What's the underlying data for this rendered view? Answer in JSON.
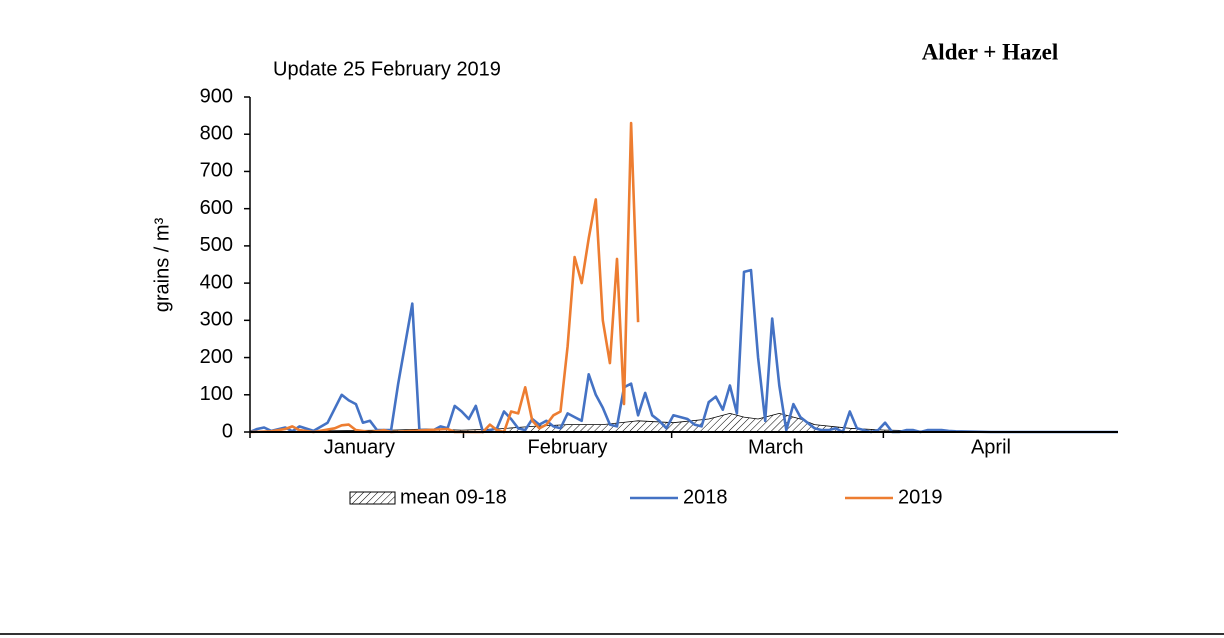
{
  "chart_data": {
    "type": "line",
    "title": "Alder + Hazel",
    "subtitle": "Update 25 February 2019",
    "y_label": "grains / m³",
    "xlim": [
      0,
      123
    ],
    "xticks": [
      {
        "value": 15.5,
        "label": "January"
      },
      {
        "value": 45,
        "label": "February"
      },
      {
        "value": 74.5,
        "label": "March"
      },
      {
        "value": 105,
        "label": "April"
      }
    ],
    "ylim": [
      0,
      900
    ],
    "yticks": [
      0,
      100,
      200,
      300,
      400,
      500,
      600,
      700,
      800,
      900
    ],
    "grid": false,
    "series": [
      {
        "name": "mean 09-18",
        "color": "#000000",
        "area": true,
        "x": [
          0,
          10,
          20,
          25,
          30,
          35,
          40,
          45,
          50,
          55,
          60,
          65,
          68,
          70,
          72,
          75,
          78,
          80,
          85,
          90,
          95,
          100,
          123
        ],
        "values": [
          0,
          3,
          5,
          8,
          5,
          8,
          15,
          20,
          20,
          30,
          25,
          35,
          50,
          40,
          35,
          50,
          35,
          20,
          10,
          5,
          3,
          1,
          0
        ]
      },
      {
        "name": "2018",
        "color": "#4472c4",
        "x": [
          0,
          1,
          2,
          3,
          5,
          6,
          7,
          9,
          11,
          13,
          14,
          15,
          16,
          17,
          18,
          20,
          21,
          23,
          24,
          25,
          26,
          27,
          28,
          29,
          30,
          31,
          32,
          33,
          34,
          35,
          36,
          37,
          38,
          39,
          40,
          41,
          42,
          43,
          44,
          45,
          46,
          47,
          48,
          49,
          50,
          51,
          52,
          53,
          54,
          55,
          56,
          57,
          58,
          59,
          60,
          61,
          62,
          63,
          64,
          65,
          66,
          67,
          68,
          69,
          70,
          71,
          72,
          73,
          74,
          75,
          76,
          77,
          78,
          79,
          80,
          81,
          82,
          83,
          84,
          85,
          86,
          87,
          88,
          89,
          90,
          91,
          92,
          93,
          94,
          95,
          96,
          97,
          98,
          99,
          100,
          105,
          123
        ],
        "values": [
          0,
          8,
          12,
          3,
          12,
          2,
          15,
          3,
          25,
          100,
          85,
          75,
          25,
          30,
          5,
          5,
          130,
          345,
          5,
          5,
          5,
          15,
          10,
          70,
          55,
          35,
          70,
          0,
          5,
          10,
          55,
          35,
          10,
          5,
          35,
          20,
          30,
          15,
          10,
          50,
          40,
          30,
          155,
          100,
          65,
          20,
          15,
          120,
          130,
          45,
          105,
          45,
          30,
          10,
          45,
          40,
          35,
          20,
          15,
          80,
          95,
          60,
          125,
          50,
          430,
          435,
          200,
          30,
          305,
          125,
          5,
          75,
          40,
          25,
          10,
          5,
          5,
          10,
          0,
          55,
          10,
          5,
          0,
          5,
          25,
          0,
          0,
          5,
          5,
          0,
          5,
          5,
          5,
          3,
          2,
          0,
          0
        ]
      },
      {
        "name": "2019",
        "color": "#ed7d31",
        "x": [
          0,
          3,
          5,
          6,
          7,
          9,
          12,
          13,
          14,
          15,
          17,
          19,
          20,
          28,
          29,
          31,
          33,
          34,
          35,
          36,
          37,
          38,
          39,
          40,
          41,
          42,
          43,
          44,
          45,
          46,
          47,
          48,
          49,
          50,
          51,
          52,
          53,
          54,
          55
        ],
        "values": [
          0,
          2,
          8,
          15,
          5,
          0,
          10,
          18,
          20,
          5,
          0,
          5,
          0,
          8,
          0,
          0,
          0,
          20,
          5,
          0,
          55,
          50,
          120,
          30,
          10,
          20,
          45,
          55,
          230,
          470,
          400,
          520,
          625,
          300,
          185,
          465,
          75,
          830,
          295
        ]
      }
    ]
  }
}
